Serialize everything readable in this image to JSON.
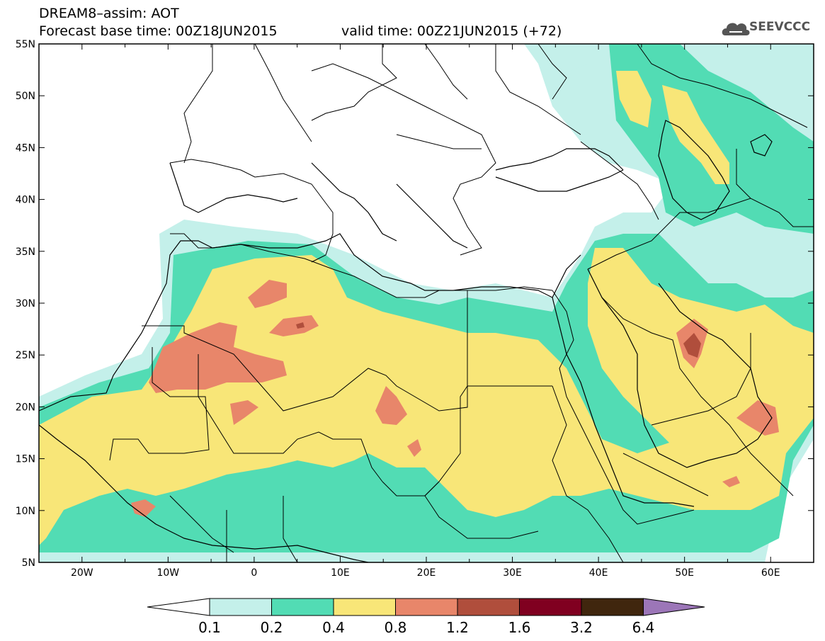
{
  "header": {
    "line1": "DREAM8–assim: AOT",
    "line2_left": "Forecast base time: 00Z18JUN2015",
    "line2_right": "valid time: 00Z21JUN2015 (+72)",
    "logo_text": "SEEVCCC"
  },
  "map": {
    "lon_range": [
      -25,
      65
    ],
    "lat_range": [
      5,
      55
    ],
    "lat_labels": [
      "5N",
      "10N",
      "15N",
      "20N",
      "25N",
      "30N",
      "35N",
      "40N",
      "45N",
      "50N",
      "55N"
    ],
    "lon_labels": [
      "20W",
      "10W",
      "0",
      "10E",
      "20E",
      "30E",
      "40E",
      "50E",
      "60E"
    ]
  },
  "colorbar": {
    "labels": [
      "0.1",
      "0.2",
      "0.4",
      "0.8",
      "1.2",
      "1.6",
      "3.2",
      "6.4"
    ],
    "colors": [
      "#c4f0ea",
      "#52dcb4",
      "#f8e678",
      "#e8866a",
      "#b04e3c",
      "#800020",
      "#40260e"
    ],
    "over_color": "#9c76b8",
    "under_color": "#ffffff"
  },
  "colors": {
    "c1": "#c4f0ea",
    "c2": "#52dcb4",
    "c3": "#f8e678",
    "c4": "#e8866a",
    "c5": "#b04e3c",
    "c6": "#800020"
  }
}
